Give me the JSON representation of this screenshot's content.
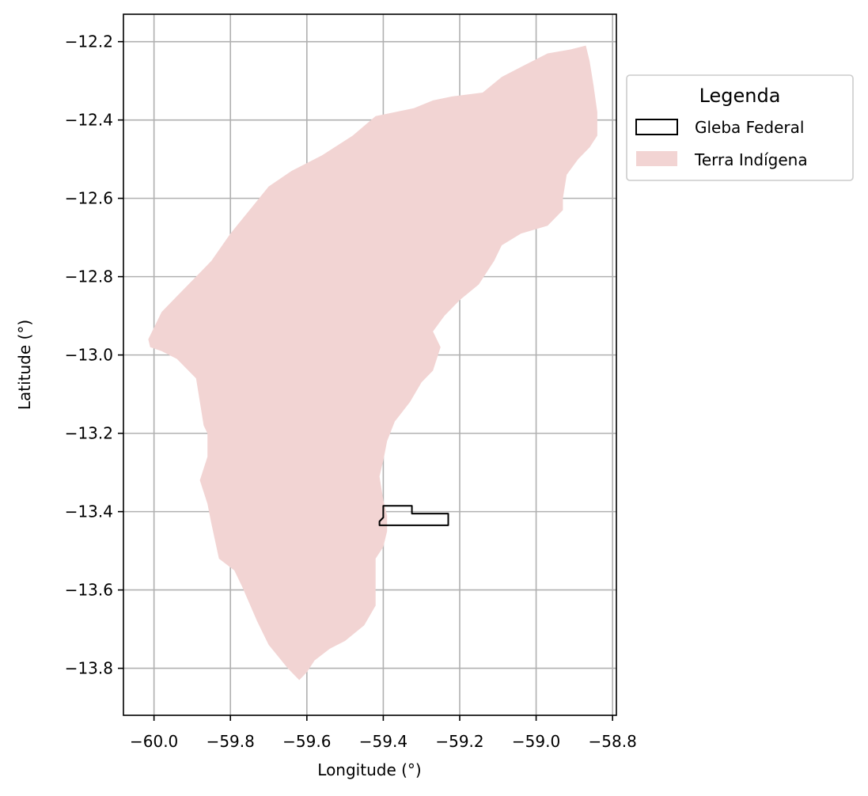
{
  "chart_data": {
    "type": "map",
    "xlabel": "Longitude (°)",
    "ylabel": "Latitude (°)",
    "xlim": [
      -60.08,
      -58.79
    ],
    "ylim": [
      -13.92,
      -12.13
    ],
    "xticks": [
      -60.0,
      -59.8,
      -59.6,
      -59.4,
      -59.2,
      -59.0,
      -58.8
    ],
    "xtick_labels": [
      "−60.0",
      "−59.8",
      "−59.6",
      "−59.4",
      "−59.2",
      "−59.0",
      "−58.8"
    ],
    "yticks": [
      -12.2,
      -12.4,
      -12.6,
      -12.8,
      -13.0,
      -13.2,
      -13.4,
      -13.6,
      -13.8
    ],
    "ytick_labels": [
      "−12.2",
      "−12.4",
      "−12.6",
      "−12.8",
      "−13.0",
      "−13.2",
      "−13.4",
      "−13.6",
      "−13.8"
    ],
    "grid": true,
    "legend": {
      "title": "Legenda",
      "placement": "outside-upper-right",
      "entries": [
        {
          "label": "Gleba Federal",
          "style": "outline",
          "color": "#000000"
        },
        {
          "label": "Terra Indígena",
          "style": "fill",
          "color": "#f2d4d3"
        }
      ]
    },
    "layers": [
      {
        "name": "Terra Indígena",
        "fill": "#f2d4d3",
        "coordinates": [
          [
            -59.62,
            -13.83
          ],
          [
            -59.65,
            -13.8
          ],
          [
            -59.7,
            -13.74
          ],
          [
            -59.73,
            -13.68
          ],
          [
            -59.77,
            -13.59
          ],
          [
            -59.79,
            -13.55
          ],
          [
            -59.83,
            -13.52
          ],
          [
            -59.85,
            -13.43
          ],
          [
            -59.86,
            -13.38
          ],
          [
            -59.88,
            -13.32
          ],
          [
            -59.86,
            -13.26
          ],
          [
            -59.86,
            -13.2
          ],
          [
            -59.87,
            -13.18
          ],
          [
            -59.89,
            -13.06
          ],
          [
            -59.91,
            -13.04
          ],
          [
            -59.94,
            -13.01
          ],
          [
            -59.98,
            -12.99
          ],
          [
            -60.01,
            -12.98
          ],
          [
            -60.015,
            -12.96
          ],
          [
            -60.0,
            -12.93
          ],
          [
            -59.98,
            -12.89
          ],
          [
            -59.94,
            -12.85
          ],
          [
            -59.9,
            -12.81
          ],
          [
            -59.85,
            -12.76
          ],
          [
            -59.8,
            -12.69
          ],
          [
            -59.75,
            -12.63
          ],
          [
            -59.7,
            -12.57
          ],
          [
            -59.64,
            -12.53
          ],
          [
            -59.56,
            -12.49
          ],
          [
            -59.48,
            -12.44
          ],
          [
            -59.42,
            -12.39
          ],
          [
            -59.37,
            -12.38
          ],
          [
            -59.32,
            -12.37
          ],
          [
            -59.27,
            -12.35
          ],
          [
            -59.22,
            -12.34
          ],
          [
            -59.14,
            -12.33
          ],
          [
            -59.09,
            -12.29
          ],
          [
            -59.03,
            -12.26
          ],
          [
            -58.97,
            -12.23
          ],
          [
            -58.91,
            -12.22
          ],
          [
            -58.87,
            -12.21
          ],
          [
            -58.86,
            -12.25
          ],
          [
            -58.85,
            -12.31
          ],
          [
            -58.84,
            -12.38
          ],
          [
            -58.84,
            -12.44
          ],
          [
            -58.86,
            -12.47
          ],
          [
            -58.89,
            -12.5
          ],
          [
            -58.92,
            -12.54
          ],
          [
            -58.93,
            -12.6
          ],
          [
            -58.93,
            -12.63
          ],
          [
            -58.97,
            -12.67
          ],
          [
            -59.04,
            -12.69
          ],
          [
            -59.09,
            -12.72
          ],
          [
            -59.11,
            -12.76
          ],
          [
            -59.15,
            -12.82
          ],
          [
            -59.2,
            -12.86
          ],
          [
            -59.24,
            -12.9
          ],
          [
            -59.27,
            -12.94
          ],
          [
            -59.25,
            -12.98
          ],
          [
            -59.27,
            -13.04
          ],
          [
            -59.3,
            -13.07
          ],
          [
            -59.33,
            -13.12
          ],
          [
            -59.37,
            -13.17
          ],
          [
            -59.39,
            -13.22
          ],
          [
            -59.4,
            -13.27
          ],
          [
            -59.41,
            -13.31
          ],
          [
            -59.4,
            -13.37
          ],
          [
            -59.39,
            -13.41
          ],
          [
            -59.39,
            -13.45
          ],
          [
            -59.4,
            -13.49
          ],
          [
            -59.42,
            -13.52
          ],
          [
            -59.42,
            -13.58
          ],
          [
            -59.42,
            -13.64
          ],
          [
            -59.45,
            -13.69
          ],
          [
            -59.5,
            -13.73
          ],
          [
            -59.54,
            -13.75
          ],
          [
            -59.58,
            -13.78
          ],
          [
            -59.6,
            -13.81
          ]
        ]
      },
      {
        "name": "Gleba Federal",
        "stroke": "#000000",
        "coordinates": [
          [
            -59.41,
            -13.425
          ],
          [
            -59.4,
            -13.415
          ],
          [
            -59.4,
            -13.385
          ],
          [
            -59.325,
            -13.385
          ],
          [
            -59.325,
            -13.405
          ],
          [
            -59.23,
            -13.405
          ],
          [
            -59.23,
            -13.435
          ],
          [
            -59.41,
            -13.435
          ]
        ]
      }
    ]
  }
}
